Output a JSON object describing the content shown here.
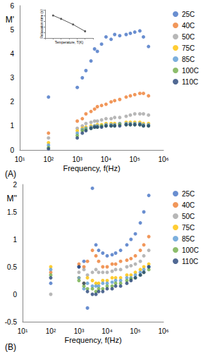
{
  "chart_data": [
    {
      "type": "scatter",
      "title": "(A)",
      "xlabel": "Frequency, f(Hz)",
      "ylabel": "M'",
      "log": "x",
      "grid": false,
      "legend": "right",
      "marker": "circle",
      "xlim": [
        10,
        1000000
      ],
      "xticks": [
        {
          "value": 10,
          "label": "10¹"
        },
        {
          "value": 100,
          "label": "10²"
        },
        {
          "value": 1000,
          "label": "10³"
        },
        {
          "value": 10000,
          "label": "10⁴"
        },
        {
          "value": 100000,
          "label": "10⁵"
        },
        {
          "value": 1000000,
          "label": "10⁶"
        }
      ],
      "ylim": [
        0,
        6
      ],
      "yticks": [
        0,
        1,
        2,
        3,
        4,
        5,
        6
      ],
      "x": [
        100,
        1000,
        1500,
        2000,
        3000,
        4000,
        5000,
        7000,
        10000,
        15000,
        20000,
        30000,
        50000,
        70000,
        100000,
        150000,
        200000,
        300000
      ],
      "series": [
        {
          "name": "25C",
          "color": "#4472c4",
          "values": [
            2.2,
            2.6,
            3.0,
            3.3,
            3.7,
            4.2,
            4.1,
            4.4,
            4.7,
            4.6,
            4.8,
            4.75,
            4.8,
            4.85,
            4.9,
            4.95,
            4.7,
            4.3
          ]
        },
        {
          "name": "40C",
          "color": "#ed7d31",
          "values": [
            0.7,
            1.2,
            1.3,
            1.5,
            1.6,
            1.7,
            1.8,
            1.85,
            1.9,
            2.0,
            2.05,
            2.1,
            2.2,
            2.25,
            2.3,
            2.35,
            2.35,
            2.25
          ]
        },
        {
          "name": "50C",
          "color": "#a5a5a5",
          "values": [
            0.5,
            0.9,
            1.0,
            1.1,
            1.15,
            1.2,
            1.2,
            1.25,
            1.3,
            1.3,
            1.35,
            1.35,
            1.4,
            1.45,
            1.5,
            1.5,
            1.5,
            1.45
          ]
        },
        {
          "name": "75C",
          "color": "#ffc000",
          "values": [
            0.3,
            0.8,
            0.9,
            0.95,
            1.0,
            1.0,
            1.05,
            1.05,
            1.1,
            1.1,
            1.1,
            1.1,
            1.15,
            1.15,
            1.15,
            1.15,
            1.1,
            1.1
          ]
        },
        {
          "name": "85C",
          "color": "#5b9bd5",
          "values": [
            0.2,
            0.7,
            0.85,
            0.9,
            0.95,
            1.0,
            1.0,
            1.0,
            1.05,
            1.05,
            1.05,
            1.1,
            1.1,
            1.1,
            1.1,
            1.1,
            1.05,
            1.05
          ]
        },
        {
          "name": "100C",
          "color": "#70ad47",
          "values": [
            0.1,
            0.6,
            0.8,
            0.85,
            0.9,
            0.95,
            0.95,
            1.0,
            1.0,
            1.0,
            1.0,
            1.05,
            1.05,
            1.05,
            1.05,
            1.05,
            1.0,
            1.0
          ]
        },
        {
          "name": "110C",
          "color": "#264478",
          "values": [
            0.05,
            0.5,
            0.7,
            0.8,
            0.9,
            0.95,
            0.95,
            0.95,
            1.0,
            1.0,
            1.0,
            1.0,
            1.05,
            1.05,
            1.05,
            1.05,
            1.0,
            1.0
          ]
        }
      ]
    },
    {
      "type": "line",
      "xlabel": "Temperature, T(K)",
      "ylabel": "Relaxation time (s)",
      "grid": false,
      "tick_labels": false,
      "marker": "circle",
      "line_style": "solid",
      "xlim": [
        280,
        400
      ],
      "xticks": [
        280,
        300,
        320,
        340,
        360,
        380,
        400
      ],
      "ylim": [
        0,
        2.5e-06
      ],
      "yticks": [
        0,
        5e-07,
        1e-06,
        1.5e-06,
        2e-06,
        2.5e-06
      ],
      "x": [
        300,
        320,
        350,
        380
      ],
      "series": [
        {
          "color": "#595959",
          "values": [
            2e-06,
            1.7e-06,
            1.2e-06,
            6e-07
          ]
        }
      ]
    },
    {
      "type": "scatter",
      "title": "(B)",
      "xlabel": "Frequency, f(Hz)",
      "ylabel": "M''",
      "log": "x",
      "grid": false,
      "legend": "right",
      "marker": "circle",
      "xlim": [
        10,
        1000000
      ],
      "xticks": [
        {
          "value": 10,
          "label": "10¹"
        },
        {
          "value": 100,
          "label": "10²"
        },
        {
          "value": 1000,
          "label": "10³"
        },
        {
          "value": 10000,
          "label": "10⁴"
        },
        {
          "value": 100000,
          "label": "10⁵"
        },
        {
          "value": 1000000,
          "label": "10⁶"
        }
      ],
      "ylim": [
        -0.5,
        2
      ],
      "yticks": [
        -0.5,
        0,
        0.5,
        1,
        1.5,
        2
      ],
      "x": [
        100,
        1000,
        1500,
        2000,
        3000,
        4000,
        5000,
        7000,
        10000,
        15000,
        20000,
        30000,
        50000,
        70000,
        100000,
        150000,
        200000,
        300000
      ],
      "series": [
        {
          "name": "25C",
          "color": "#4472c4",
          "values": [
            0.2,
            0.5,
            0.6,
            -0.25,
            1.93,
            0.9,
            0.8,
            0.75,
            0.7,
            0.72,
            0.75,
            0.8,
            0.9,
            1.0,
            1.1,
            1.3,
            1.5,
            1.8
          ]
        },
        {
          "name": "40C",
          "color": "#ed7d31",
          "values": [
            0.4,
            0.55,
            0.5,
            0.6,
            0.8,
            0.7,
            0.6,
            0.5,
            0.5,
            0.55,
            0.55,
            0.6,
            0.62,
            0.65,
            0.7,
            0.8,
            0.9,
            1.05
          ]
        },
        {
          "name": "50C",
          "color": "#a5a5a5",
          "values": [
            0.0,
            0.4,
            0.45,
            0.35,
            0.4,
            0.45,
            0.4,
            0.4,
            0.4,
            0.42,
            0.45,
            0.45,
            0.5,
            0.52,
            0.55,
            0.6,
            0.7,
            0.8
          ]
        },
        {
          "name": "75C",
          "color": "#ffc000",
          "values": [
            0.5,
            0.3,
            0.2,
            0.3,
            0.25,
            0.2,
            0.2,
            0.25,
            0.25,
            0.3,
            0.3,
            0.3,
            0.35,
            0.35,
            0.4,
            0.45,
            0.5,
            0.55
          ]
        },
        {
          "name": "85C",
          "color": "#5b9bd5",
          "values": [
            0.45,
            0.3,
            0.1,
            0.2,
            0.15,
            0.15,
            0.15,
            0.2,
            0.2,
            0.22,
            0.25,
            0.25,
            0.3,
            0.3,
            0.35,
            0.4,
            0.45,
            0.5
          ]
        },
        {
          "name": "100C",
          "color": "#70ad47",
          "values": [
            0.35,
            0.25,
            0.15,
            0.1,
            0.1,
            0.05,
            0.1,
            0.1,
            0.15,
            0.15,
            0.2,
            0.2,
            0.25,
            0.28,
            0.3,
            0.35,
            0.4,
            0.45
          ]
        },
        {
          "name": "110C",
          "color": "#264478",
          "values": [
            0.3,
            0.5,
            0.2,
            0.05,
            0.0,
            0.0,
            0.05,
            0.05,
            0.1,
            0.1,
            0.15,
            0.15,
            0.2,
            0.25,
            0.3,
            0.35,
            0.4,
            0.5
          ]
        }
      ]
    }
  ]
}
